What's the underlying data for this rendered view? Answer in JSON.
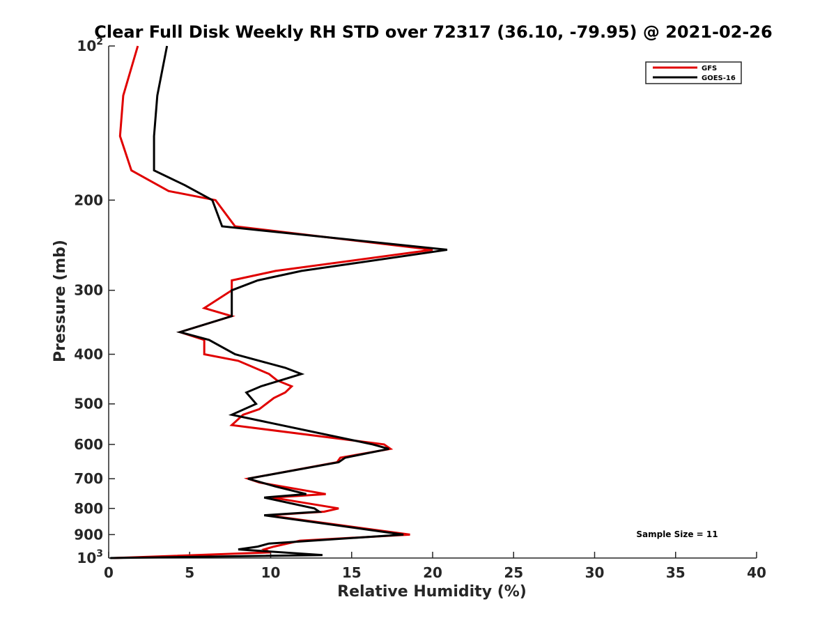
{
  "chart_data": {
    "type": "line",
    "title": "Clear Full Disk Weekly RH STD over 72317 (36.10, -79.95) @ 2021-02-26",
    "xlabel": "Relative Humidity (%)",
    "ylabel": "Pressure (mb)",
    "xlim": [
      0,
      40
    ],
    "ylim": [
      100,
      1000
    ],
    "y_scale": "log",
    "y_reversed": true,
    "x_ticks": [
      "0",
      "5",
      "10",
      "15",
      "20",
      "25",
      "30",
      "35",
      "40"
    ],
    "y_ticks": [
      {
        "value": 100,
        "base": "10",
        "exp": "2"
      },
      {
        "value": 200,
        "label": "200"
      },
      {
        "value": 300,
        "label": "300"
      },
      {
        "value": 400,
        "label": "400"
      },
      {
        "value": 500,
        "label": "500"
      },
      {
        "value": 600,
        "label": "600"
      },
      {
        "value": 700,
        "label": "700"
      },
      {
        "value": 800,
        "label": "800"
      },
      {
        "value": 900,
        "label": "900"
      },
      {
        "value": 1000,
        "base": "10",
        "exp": "3"
      }
    ],
    "legend_position": "top-right",
    "annotation": "Sample Size = 11",
    "series": [
      {
        "name": "GFS",
        "color": "#e00000",
        "points": [
          [
            1.8,
            100
          ],
          [
            0.9,
            125
          ],
          [
            0.7,
            150
          ],
          [
            1.4,
            175
          ],
          [
            3.7,
            192
          ],
          [
            6.6,
            200
          ],
          [
            7.8,
            225
          ],
          [
            20.0,
            250
          ],
          [
            10.3,
            275
          ],
          [
            7.6,
            287
          ],
          [
            7.6,
            300
          ],
          [
            5.9,
            325
          ],
          [
            7.6,
            337
          ],
          [
            4.4,
            362
          ],
          [
            5.9,
            375
          ],
          [
            5.9,
            400
          ],
          [
            8.0,
            412
          ],
          [
            9.9,
            437
          ],
          [
            10.4,
            450
          ],
          [
            11.3,
            462
          ],
          [
            10.9,
            475
          ],
          [
            10.2,
            487
          ],
          [
            9.3,
            512
          ],
          [
            8.3,
            525
          ],
          [
            7.6,
            550
          ],
          [
            17.0,
            600
          ],
          [
            17.4,
            612
          ],
          [
            14.3,
            637
          ],
          [
            14.1,
            650
          ],
          [
            8.6,
            700
          ],
          [
            9.3,
            712
          ],
          [
            13.4,
            750
          ],
          [
            10.1,
            762
          ],
          [
            14.2,
            800
          ],
          [
            13.3,
            812
          ],
          [
            9.8,
            825
          ],
          [
            18.6,
            900
          ],
          [
            11.8,
            925
          ],
          [
            10.2,
            950
          ],
          [
            9.6,
            962
          ],
          [
            10.0,
            975
          ],
          [
            0.3,
            1000
          ]
        ]
      },
      {
        "name": "GOES-16",
        "color": "#000000",
        "points": [
          [
            3.6,
            100
          ],
          [
            3.0,
            125
          ],
          [
            2.8,
            150
          ],
          [
            2.8,
            175
          ],
          [
            4.7,
            187
          ],
          [
            6.4,
            200
          ],
          [
            7.0,
            225
          ],
          [
            20.9,
            250
          ],
          [
            11.9,
            275
          ],
          [
            9.2,
            287
          ],
          [
            7.6,
            300
          ],
          [
            7.6,
            325
          ],
          [
            7.6,
            337
          ],
          [
            4.4,
            362
          ],
          [
            6.2,
            375
          ],
          [
            7.8,
            400
          ],
          [
            10.9,
            425
          ],
          [
            11.9,
            437
          ],
          [
            9.4,
            462
          ],
          [
            8.5,
            475
          ],
          [
            9.1,
            500
          ],
          [
            7.6,
            525
          ],
          [
            16.3,
            600
          ],
          [
            17.3,
            612
          ],
          [
            14.6,
            637
          ],
          [
            14.2,
            650
          ],
          [
            8.6,
            700
          ],
          [
            10.3,
            725
          ],
          [
            12.2,
            750
          ],
          [
            9.6,
            762
          ],
          [
            12.7,
            800
          ],
          [
            13.0,
            812
          ],
          [
            9.6,
            825
          ],
          [
            18.2,
            900
          ],
          [
            9.9,
            937
          ],
          [
            9.2,
            950
          ],
          [
            8.0,
            962
          ],
          [
            13.2,
            987
          ],
          [
            0.1,
            1000
          ]
        ]
      }
    ]
  }
}
